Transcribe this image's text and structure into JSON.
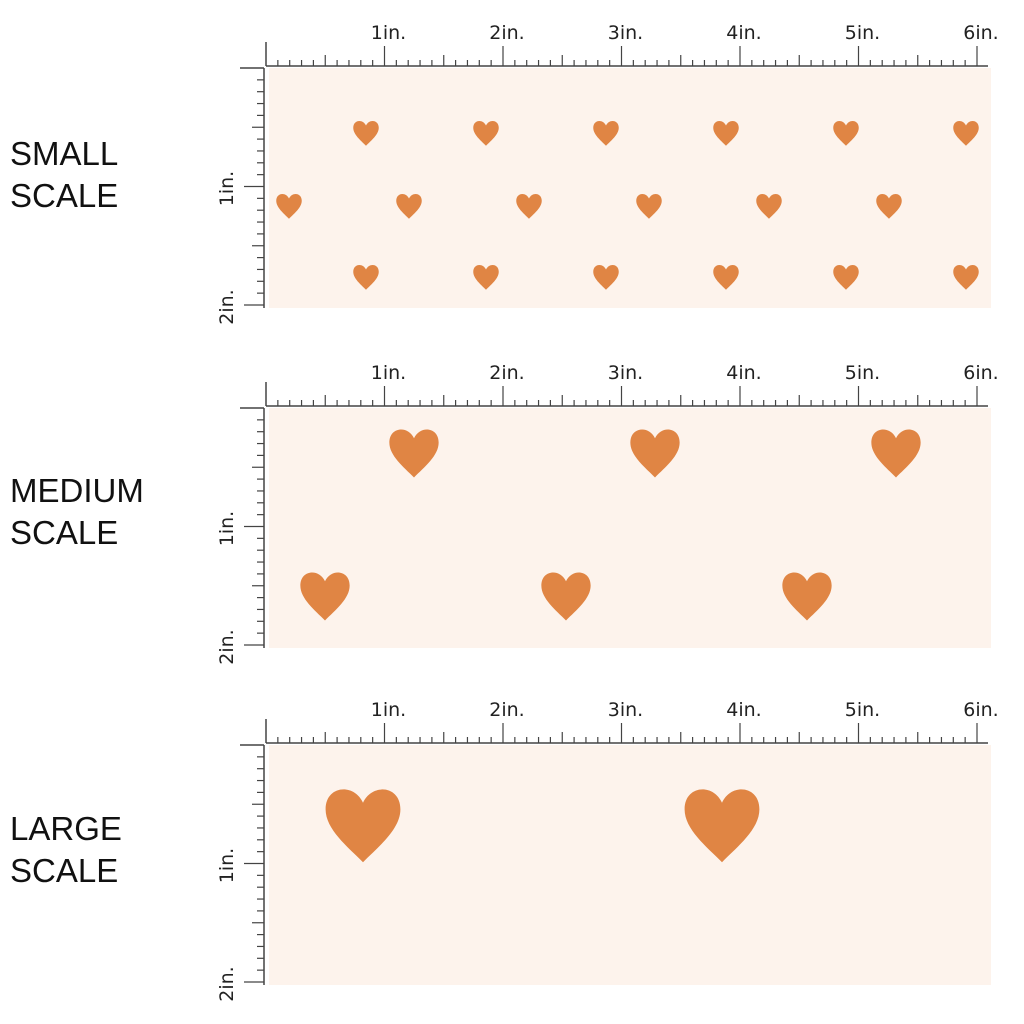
{
  "colors": {
    "background": "#fdf3ec",
    "heart": "#e08544",
    "ruler": "#444444"
  },
  "ruler": {
    "horizontal_labels": [
      "1in.",
      "2in.",
      "3in.",
      "4in.",
      "5in.",
      "6in."
    ],
    "vertical_labels": [
      "1in.",
      "2in."
    ]
  },
  "panels": [
    {
      "line1": "SMALL",
      "line2": "SCALE"
    },
    {
      "line1": "MEDIUM",
      "line2": "SCALE"
    },
    {
      "line1": "LARGE",
      "line2": "SCALE"
    }
  ],
  "icons": {
    "motif": "heart-icon"
  }
}
